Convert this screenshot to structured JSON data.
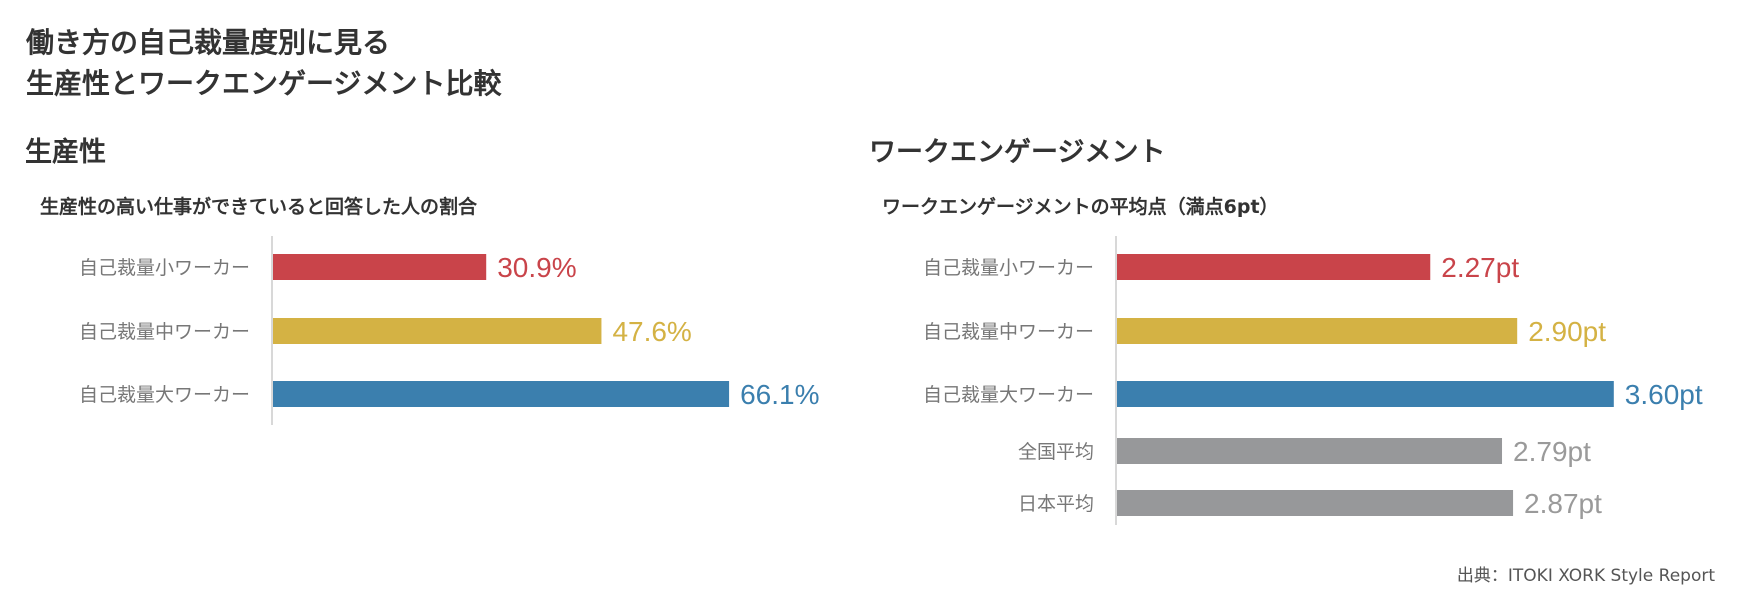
{
  "title_lines": [
    "働き方の自己裁量度別に見る",
    "生産性とワークエンゲージメント比較"
  ],
  "source": "出典：ITOKI XORK Style Report",
  "chart_data": [
    {
      "type": "bar",
      "orientation": "horizontal",
      "title": "生産性",
      "subtitle": "生産性の高い仕事ができていると回答した人の割合",
      "categories": [
        "自己裁量小ワーカー",
        "自己裁量中ワーカー",
        "自己裁量大ワーカー"
      ],
      "values": [
        30.9,
        47.6,
        66.1
      ],
      "value_labels": [
        "30.9%",
        "47.6%",
        "66.1%"
      ],
      "colors": [
        "#c9444a",
        "#d4b244",
        "#3b7fae"
      ],
      "grid": false
    },
    {
      "type": "bar",
      "orientation": "horizontal",
      "title": "ワークエンゲージメント",
      "subtitle": "ワークエンゲージメントの平均点（満点6pt）",
      "categories": [
        "自己裁量小ワーカー",
        "自己裁量中ワーカー",
        "自己裁量大ワーカー",
        "全国平均",
        "日本平均"
      ],
      "values": [
        2.27,
        2.9,
        3.6,
        2.79,
        2.87
      ],
      "value_labels": [
        "2.27pt",
        "2.90pt",
        "3.60pt",
        "2.79pt",
        "2.87pt"
      ],
      "colors": [
        "#c9444a",
        "#d4b244",
        "#3b7fae",
        "#97989a",
        "#97989a"
      ],
      "label_colors": [
        "#c9444a",
        "#d4b244",
        "#3b7fae",
        "#9a9a9a",
        "#9a9a9a"
      ],
      "grid": false
    }
  ]
}
